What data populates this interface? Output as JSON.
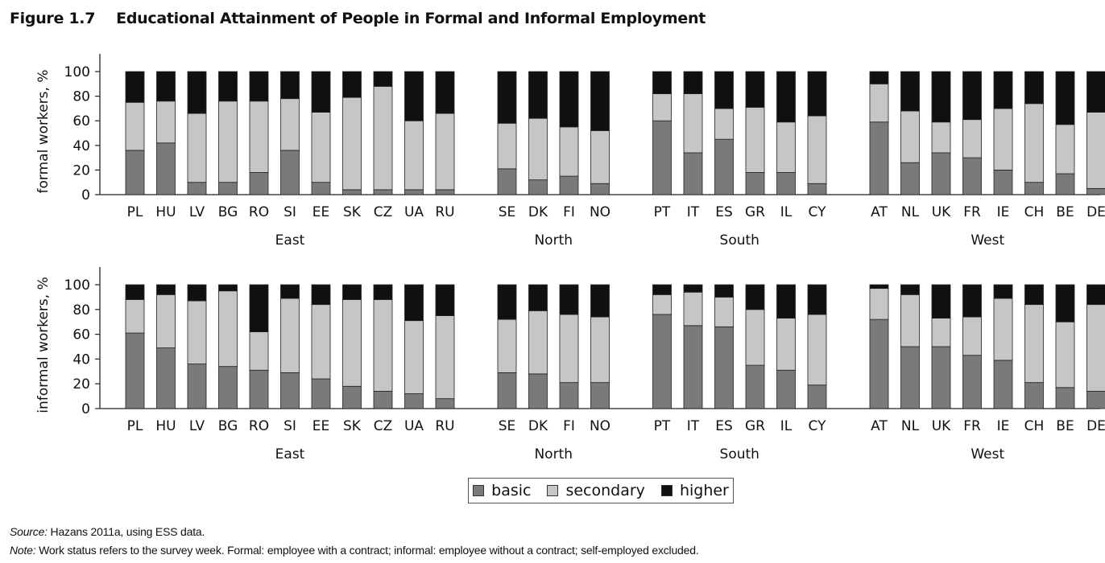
{
  "figure": {
    "number": "Figure 1.7",
    "title": "Educational Attainment of People in Formal and Informal Employment"
  },
  "colors": {
    "basic": "#7a7a7a",
    "secondary": "#c6c6c6",
    "higher": "#101010",
    "axis": "#222222"
  },
  "legend": [
    {
      "key": "basic",
      "label": "basic"
    },
    {
      "key": "secondary",
      "label": "secondary"
    },
    {
      "key": "higher",
      "label": "higher"
    }
  ],
  "chart_data": [
    {
      "type": "bar",
      "stacked": true,
      "ylabel": "formal workers, %",
      "ylim": [
        0,
        100
      ],
      "yticks": [
        0,
        20,
        40,
        60,
        80,
        100
      ],
      "groups": [
        {
          "name": "East",
          "categories": [
            "PL",
            "HU",
            "LV",
            "BG",
            "RO",
            "SI",
            "EE",
            "SK",
            "CZ",
            "UA",
            "RU"
          ]
        },
        {
          "name": "North",
          "categories": [
            "SE",
            "DK",
            "FI",
            "NO"
          ]
        },
        {
          "name": "South",
          "categories": [
            "PT",
            "IT",
            "ES",
            "GR",
            "IL",
            "CY"
          ]
        },
        {
          "name": "West",
          "categories": [
            "AT",
            "NL",
            "UK",
            "FR",
            "IE",
            "CH",
            "BE",
            "DE"
          ]
        }
      ],
      "series": [
        {
          "name": "basic",
          "values": [
            36,
            42,
            10,
            10,
            18,
            36,
            10,
            4,
            4,
            4,
            4,
            21,
            12,
            15,
            9,
            60,
            34,
            45,
            18,
            18,
            9,
            59,
            26,
            34,
            30,
            20,
            10,
            17,
            5
          ]
        },
        {
          "name": "secondary",
          "values": [
            39,
            34,
            56,
            66,
            58,
            42,
            57,
            75,
            84,
            56,
            62,
            37,
            50,
            40,
            43,
            22,
            48,
            25,
            53,
            41,
            55,
            31,
            42,
            25,
            31,
            50,
            64,
            40,
            62
          ]
        },
        {
          "name": "higher",
          "values": [
            25,
            24,
            34,
            24,
            24,
            22,
            33,
            21,
            12,
            40,
            34,
            42,
            38,
            45,
            48,
            18,
            18,
            30,
            29,
            41,
            36,
            10,
            32,
            41,
            39,
            30,
            26,
            43,
            33
          ]
        }
      ]
    },
    {
      "type": "bar",
      "stacked": true,
      "ylabel": "informal workers, %",
      "ylim": [
        0,
        100
      ],
      "yticks": [
        0,
        20,
        40,
        60,
        80,
        100
      ],
      "groups": [
        {
          "name": "East",
          "categories": [
            "PL",
            "HU",
            "LV",
            "BG",
            "RO",
            "SI",
            "EE",
            "SK",
            "CZ",
            "UA",
            "RU"
          ]
        },
        {
          "name": "North",
          "categories": [
            "SE",
            "DK",
            "FI",
            "NO"
          ]
        },
        {
          "name": "South",
          "categories": [
            "PT",
            "IT",
            "ES",
            "GR",
            "IL",
            "CY"
          ]
        },
        {
          "name": "West",
          "categories": [
            "AT",
            "NL",
            "UK",
            "FR",
            "IE",
            "CH",
            "BE",
            "DE"
          ]
        }
      ],
      "series": [
        {
          "name": "basic",
          "values": [
            61,
            49,
            36,
            34,
            31,
            29,
            24,
            18,
            14,
            12,
            8,
            29,
            28,
            21,
            21,
            76,
            67,
            66,
            35,
            31,
            19,
            72,
            50,
            50,
            43,
            39,
            21,
            17,
            14
          ]
        },
        {
          "name": "secondary",
          "values": [
            27,
            43,
            51,
            61,
            31,
            60,
            60,
            70,
            74,
            59,
            67,
            43,
            51,
            55,
            53,
            16,
            27,
            24,
            45,
            42,
            57,
            25,
            42,
            23,
            31,
            50,
            63,
            53,
            70
          ]
        },
        {
          "name": "higher",
          "values": [
            12,
            8,
            13,
            5,
            38,
            11,
            16,
            12,
            12,
            29,
            25,
            28,
            21,
            24,
            26,
            8,
            6,
            10,
            20,
            27,
            24,
            3,
            8,
            27,
            26,
            11,
            16,
            30,
            16
          ]
        }
      ]
    }
  ],
  "notes": {
    "source_label": "Source:",
    "source_text": " Hazans 2011a, using ESS data.",
    "note_label": "Note:",
    "note_text": " Work status refers to the survey week. Formal: employee with a contract; informal: employee without a contract; self-employed excluded."
  }
}
